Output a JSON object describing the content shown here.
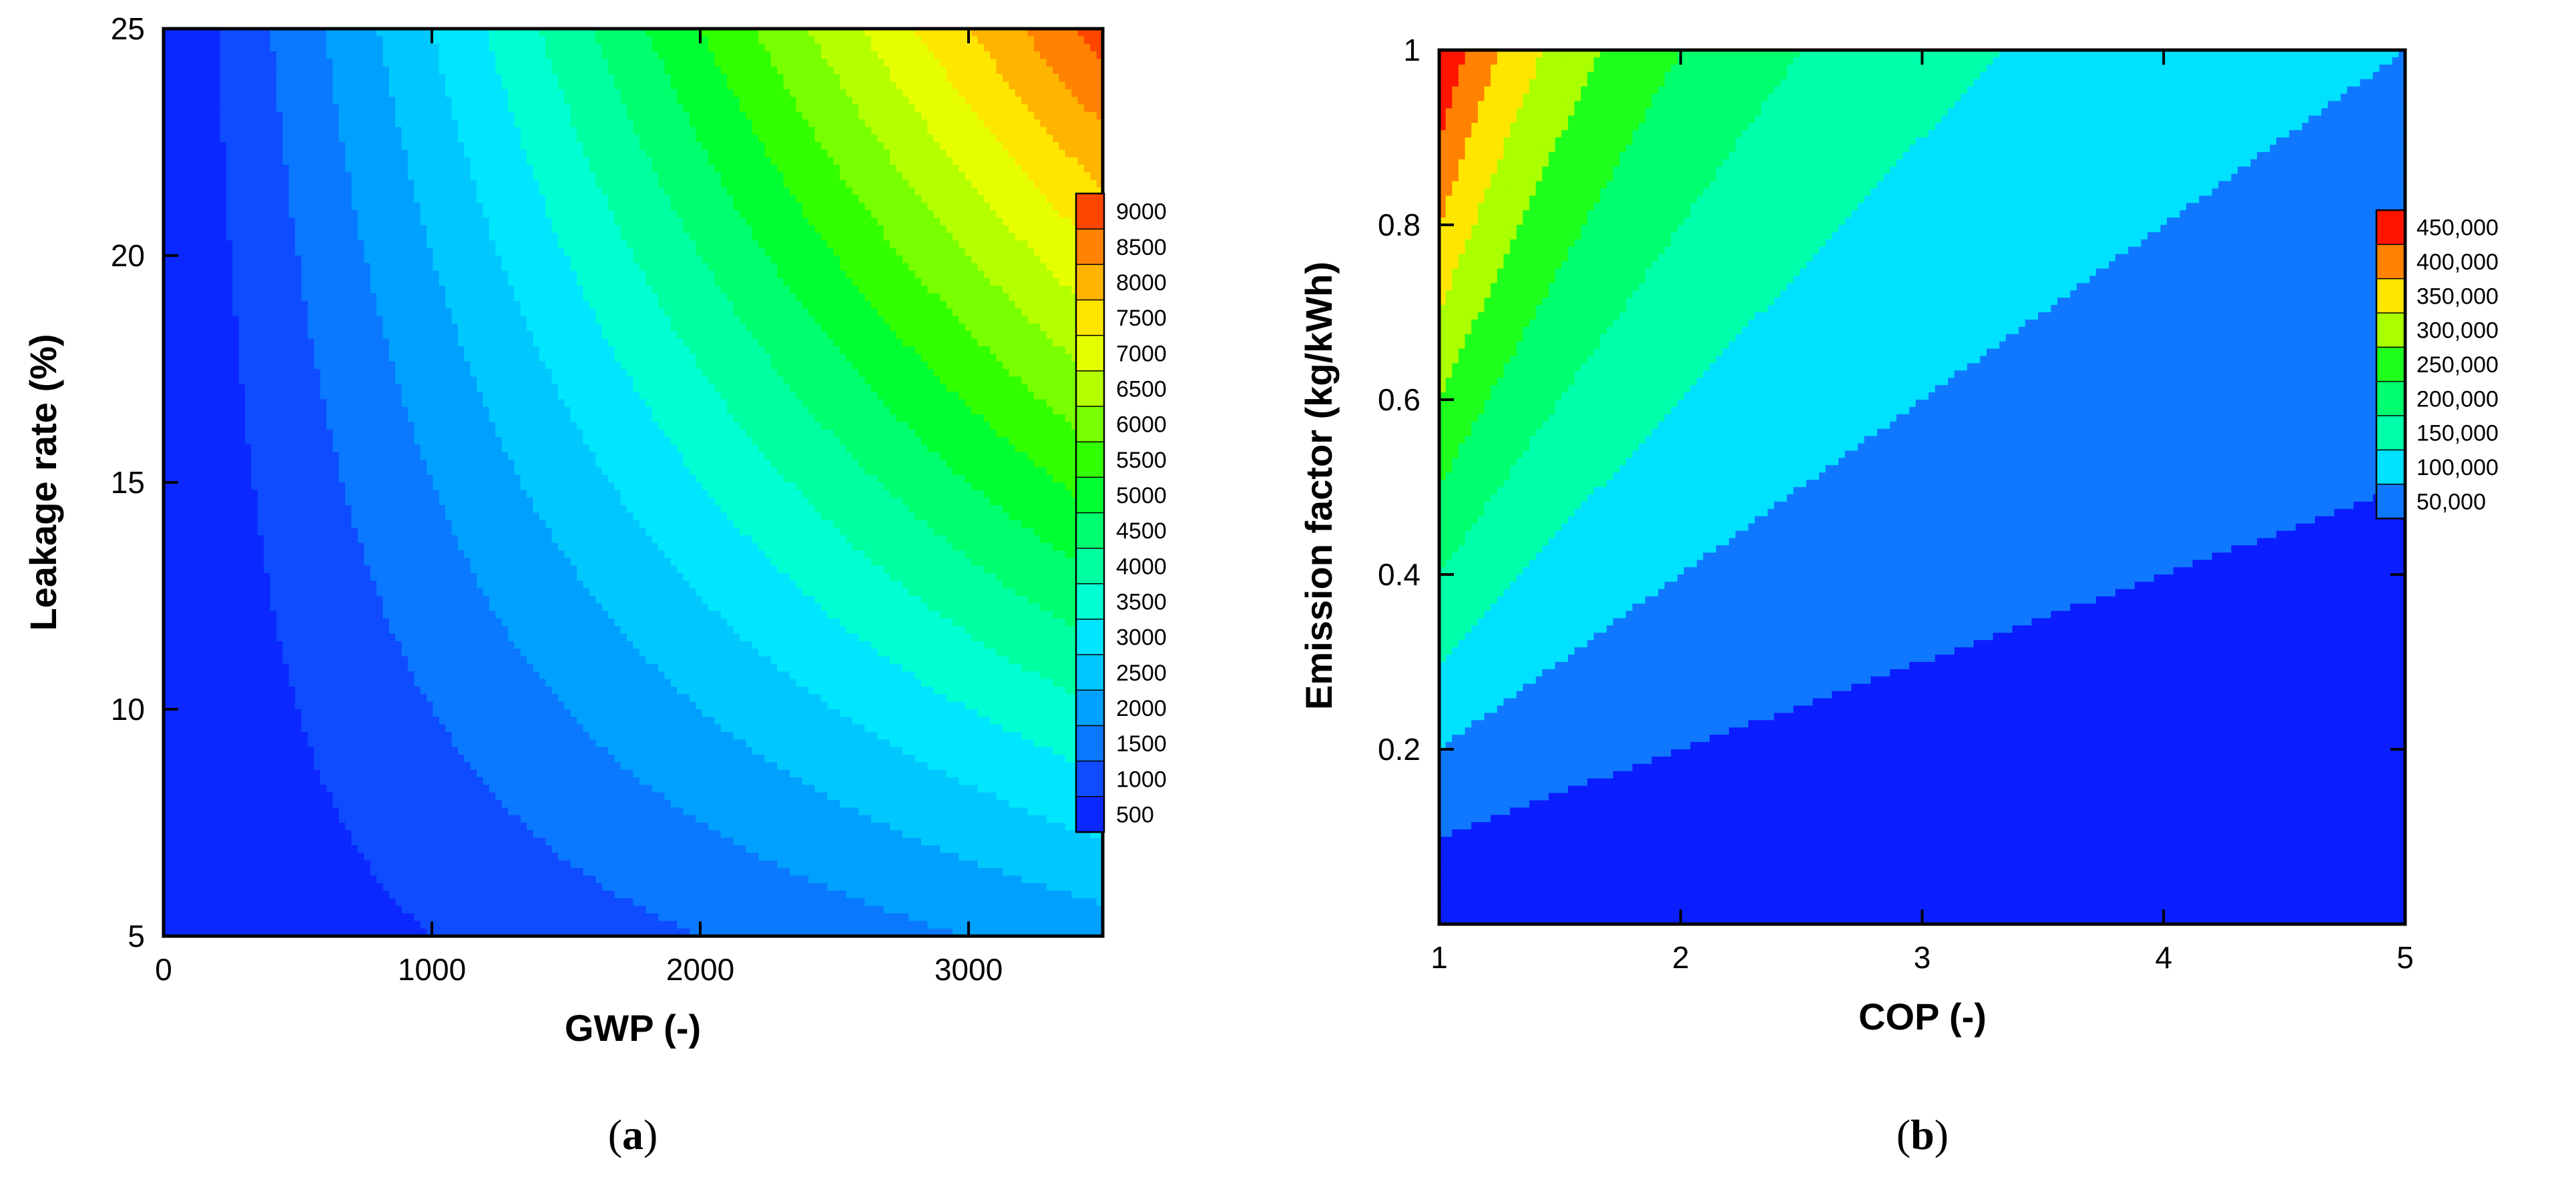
{
  "chart_data": [
    {
      "type": "heatmap",
      "subtype": "filled-contour",
      "panel": "(a)",
      "panel_letter": "a",
      "xlabel": "GWP (-)",
      "ylabel": "Leakage rate (%)",
      "xlim": [
        0,
        3500
      ],
      "ylim": [
        5,
        25
      ],
      "xticks": [
        0,
        1000,
        2000,
        3000
      ],
      "yticks": [
        5,
        10,
        15,
        20,
        25
      ],
      "grid": false,
      "legend": "right (colorbar)",
      "levels": [
        500,
        1000,
        1500,
        2000,
        2500,
        3000,
        3500,
        4000,
        4500,
        5000,
        5500,
        6000,
        6500,
        7000,
        7500,
        8000,
        8500,
        9000
      ],
      "colorbar_labels": [
        "9000",
        "8500",
        "8000",
        "7500",
        "7000",
        "6500",
        "6000",
        "5500",
        "5000",
        "4500",
        "4000",
        "3500",
        "3000",
        "2500",
        "2000",
        "1500",
        "1000",
        "500"
      ],
      "colors": [
        "#0000ff",
        "#0a28ff",
        "#0f4bff",
        "#0a78ff",
        "#00a0ff",
        "#00c8ff",
        "#00e6ff",
        "#00ffd2",
        "#00ffa0",
        "#00ff6e",
        "#00ff32",
        "#32ff00",
        "#78ff00",
        "#b4ff00",
        "#e6ff00",
        "#ffe600",
        "#ffb400",
        "#ff8200",
        "#ff4600"
      ],
      "model": "value = 500 + 0.10 * GWP * LeakageRate"
    },
    {
      "type": "heatmap",
      "subtype": "filled-contour",
      "panel": "(b)",
      "panel_letter": "b",
      "xlabel": "COP (-)",
      "ylabel": "Emission factor  (kg/kWh)",
      "xlim": [
        1,
        5
      ],
      "ylim": [
        0,
        1
      ],
      "xticks": [
        1,
        2,
        3,
        4,
        5
      ],
      "yticks": [
        0.2,
        0.4,
        0.6,
        0.8,
        1
      ],
      "grid": false,
      "legend": "right (colorbar)",
      "levels": [
        50000,
        100000,
        150000,
        200000,
        250000,
        300000,
        350000,
        400000,
        450000
      ],
      "colorbar_labels": [
        "450,000",
        "400,000",
        "350,000",
        "300,000",
        "250,000",
        "200,000",
        "150,000",
        "100,000",
        "50,000"
      ],
      "colors": [
        "#0a1eff",
        "#0f78ff",
        "#00e1ff",
        "#00ffaa",
        "#00ff6e",
        "#1eff1e",
        "#aaff00",
        "#ffe600",
        "#ff8200",
        "#ff1400"
      ],
      "model": "value = 500000 * EmissionFactor / COP"
    }
  ]
}
